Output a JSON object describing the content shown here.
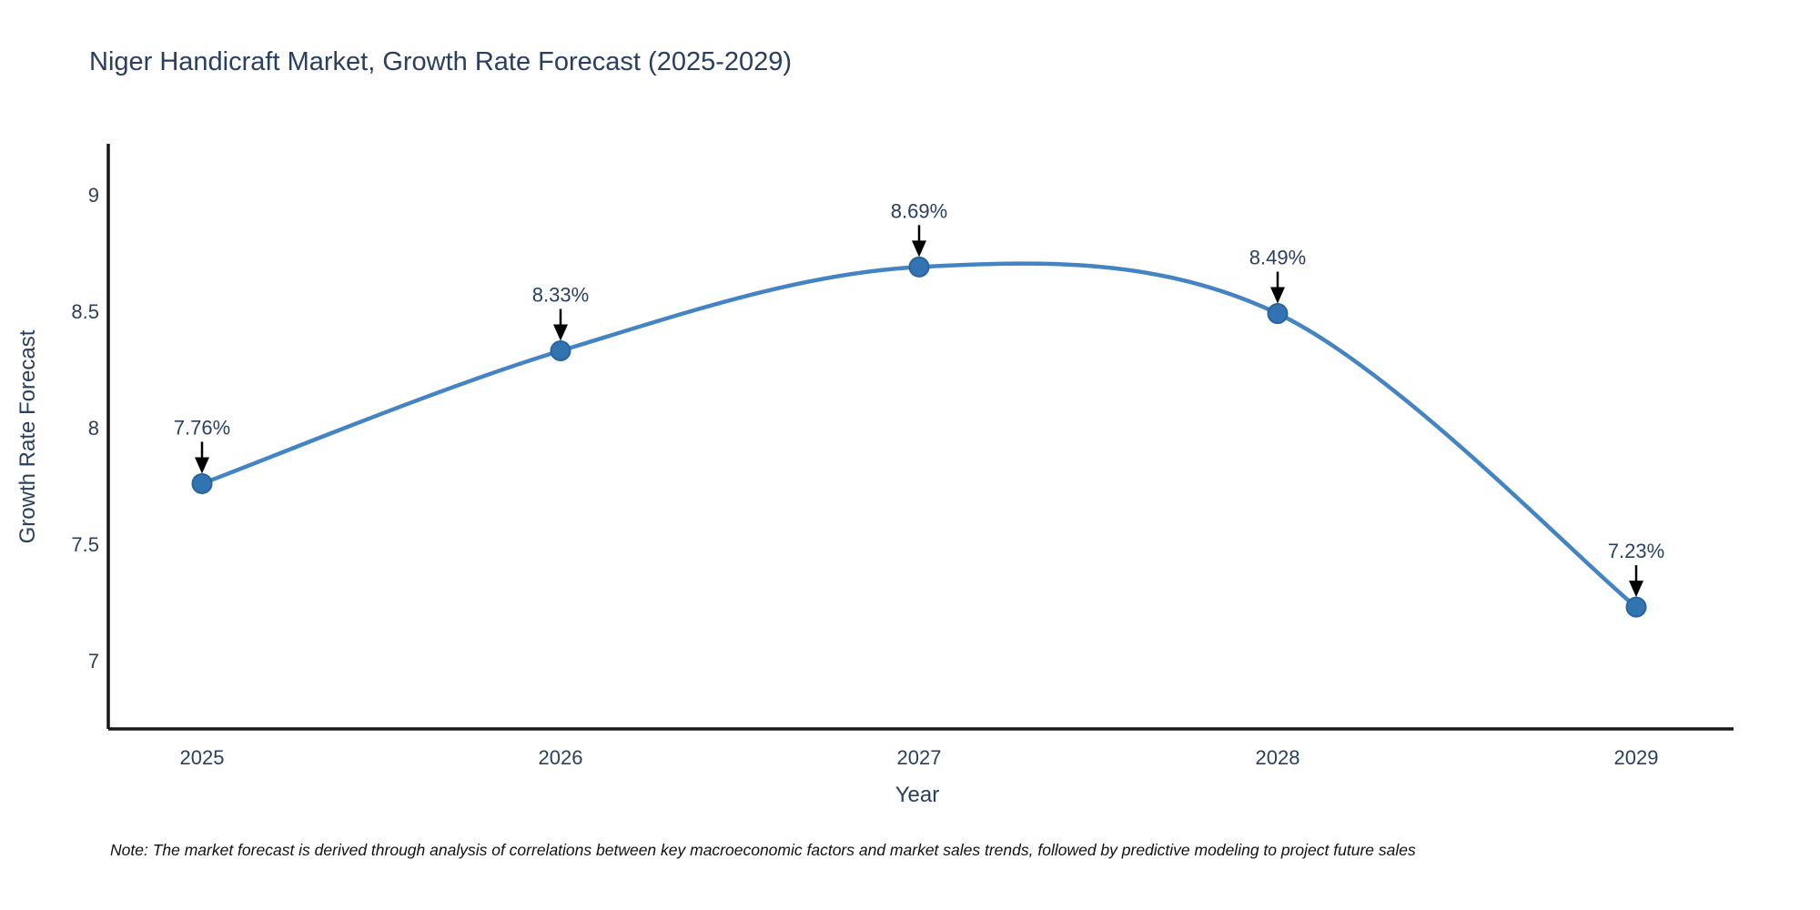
{
  "title": "Niger Handicraft Market, Growth Rate Forecast (2025-2029)",
  "note": "Note: The market forecast is derived through analysis of correlations between key macroeconomic factors and market sales trends, followed by predictive modeling to project future sales",
  "chart_data": {
    "type": "line",
    "title": "Niger Handicraft Market, Growth Rate Forecast (2025-2029)",
    "xlabel": "Year",
    "ylabel": "Growth Rate Forecast",
    "x": [
      2025,
      2026,
      2027,
      2028,
      2029
    ],
    "values": [
      7.76,
      8.33,
      8.69,
      8.49,
      7.23
    ],
    "point_labels": [
      "7.76%",
      "8.33%",
      "8.69%",
      "8.49%",
      "7.23%"
    ],
    "yticks": [
      9,
      8.5,
      8,
      7.5,
      7
    ],
    "ylim": [
      6.7,
      9.22
    ],
    "line_shape": "spline",
    "grid": false,
    "legend": "none",
    "colors": {
      "line": "#4584c2",
      "marker_fill": "#3273b1",
      "marker_stroke": "#2a649e",
      "annotation_arrow": "#000000",
      "axis_line": "#161616",
      "text": "#2a3f5f"
    }
  }
}
